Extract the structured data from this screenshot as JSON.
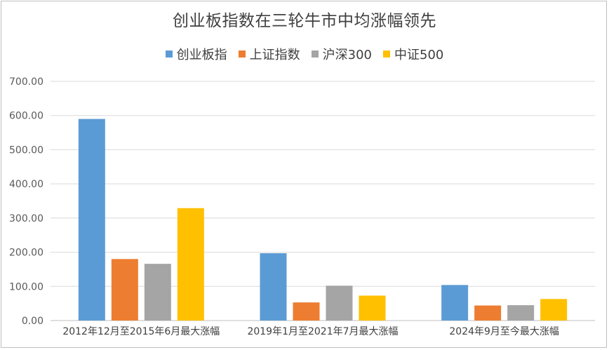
{
  "chart_data": {
    "type": "bar",
    "title": "创业板指数在三轮牛市中均涨幅领先",
    "categories": [
      "2012年12月至2015年6月最大涨幅",
      "2019年1月至2021年7月最大涨幅",
      "2024年9月至今最大涨幅"
    ],
    "series": [
      {
        "name": "创业板指",
        "color": "#5b9bd5",
        "values": [
          590,
          197,
          104
        ]
      },
      {
        "name": "上证指数",
        "color": "#ed7d31",
        "values": [
          180,
          53,
          44
        ]
      },
      {
        "name": "沪深300",
        "color": "#a5a5a5",
        "values": [
          166,
          102,
          45
        ]
      },
      {
        "name": "中证500",
        "color": "#ffc000",
        "values": [
          329,
          73,
          63
        ]
      }
    ],
    "ylim": [
      0,
      700
    ],
    "yticks": [
      "0.00",
      "100.00",
      "200.00",
      "300.00",
      "400.00",
      "500.00",
      "600.00",
      "700.00"
    ],
    "grid": true,
    "legend": "top"
  }
}
